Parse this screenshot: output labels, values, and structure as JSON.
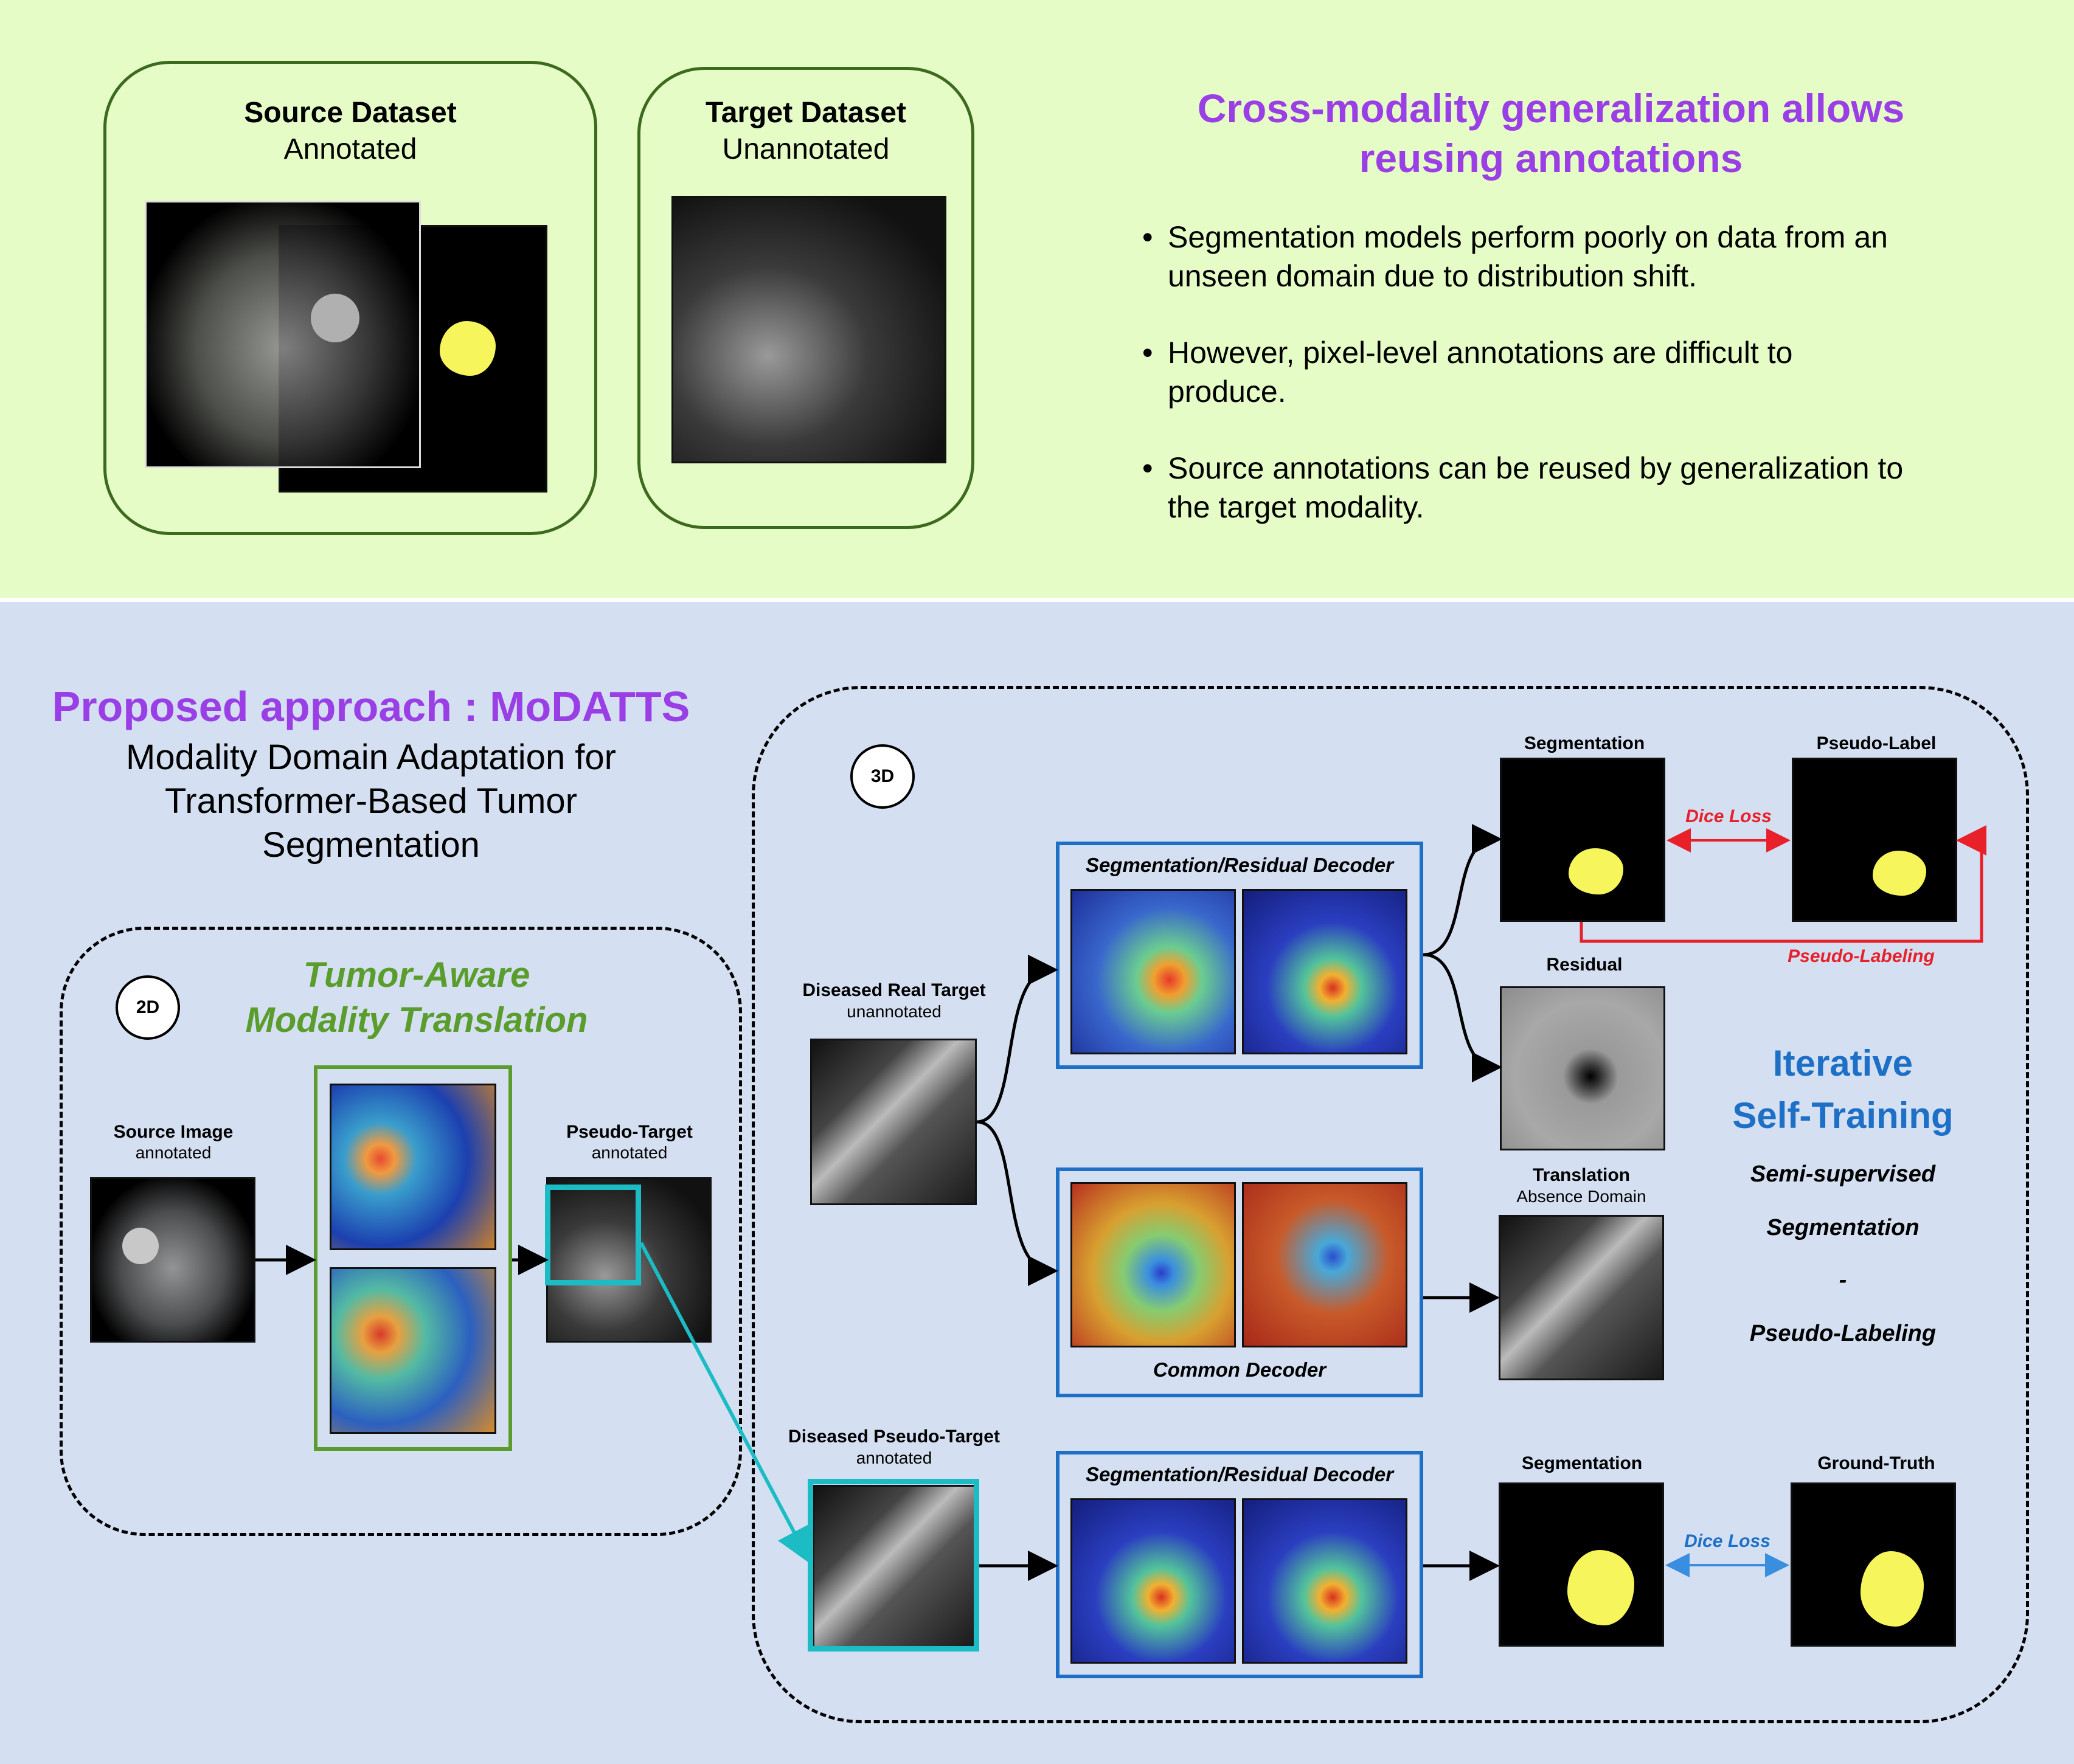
{
  "top": {
    "source_dataset": {
      "title": "Source Dataset",
      "subtitle": "Annotated"
    },
    "target_dataset": {
      "title": "Target Dataset",
      "subtitle": "Unannotated"
    },
    "heading_line1": "Cross-modality generalization allows",
    "heading_line2": "reusing annotations",
    "bullets": [
      {
        "line1": "Segmentation models perform poorly on data from an",
        "line2": "unseen domain due to distribution shift."
      },
      {
        "line1": "However, pixel-level annotations are difficult to",
        "line2": "produce."
      },
      {
        "line1": "Source annotations can be reused by generalization to",
        "line2": "the target modality."
      }
    ]
  },
  "bottom": {
    "approach_title": "Proposed approach : MoDATTS",
    "approach_sub_line1": "Modality Domain Adaptation for",
    "approach_sub_line2": "Transformer-Based Tumor",
    "approach_sub_line3": "Segmentation",
    "stage_2d": "2D",
    "stage_3d": "3D",
    "translation_title_line1": "Tumor-Aware",
    "translation_title_line2": "Modality Translation",
    "source_image": {
      "title": "Source Image",
      "sub": "annotated"
    },
    "pseudo_target": {
      "title": "Pseudo-Target",
      "sub": "annotated"
    },
    "diseased_real_target": {
      "title": "Diseased Real Target",
      "sub": "unannotated"
    },
    "diseased_pseudo_target": {
      "title": "Diseased Pseudo-Target",
      "sub": "annotated"
    },
    "seg_residual_decoder_top": "Segmentation/Residual Decoder",
    "common_decoder": "Common Decoder",
    "seg_residual_decoder_bottom": "Segmentation/Residual Decoder",
    "segmentation_top": "Segmentation",
    "pseudo_label": "Pseudo-Label",
    "dice_loss_red": "Dice Loss",
    "pseudo_labeling_red": "Pseudo-Labeling",
    "residual": "Residual",
    "translation": {
      "title": "Translation",
      "sub": "Absence Domain"
    },
    "segmentation_bottom": "Segmentation",
    "ground_truth": "Ground-Truth",
    "dice_loss_blue": "Dice Loss",
    "iterative_line1": "Iterative",
    "iterative_line2": "Self-Training",
    "semi_items": [
      "Semi-supervised",
      "Segmentation",
      "-",
      "Pseudo-Labeling"
    ]
  },
  "colors": {
    "top_bg": "#e6fcc6",
    "bottom_bg": "#d4e0f2",
    "purple": "#9a3fe6",
    "green": "#5a9d2c",
    "blue": "#1e6fc6",
    "red": "#e8202a",
    "cyan": "#1cbcc4"
  },
  "icons": [
    "arrow-right-icon",
    "double-arrow-icon",
    "bracket-arrow-icon"
  ]
}
